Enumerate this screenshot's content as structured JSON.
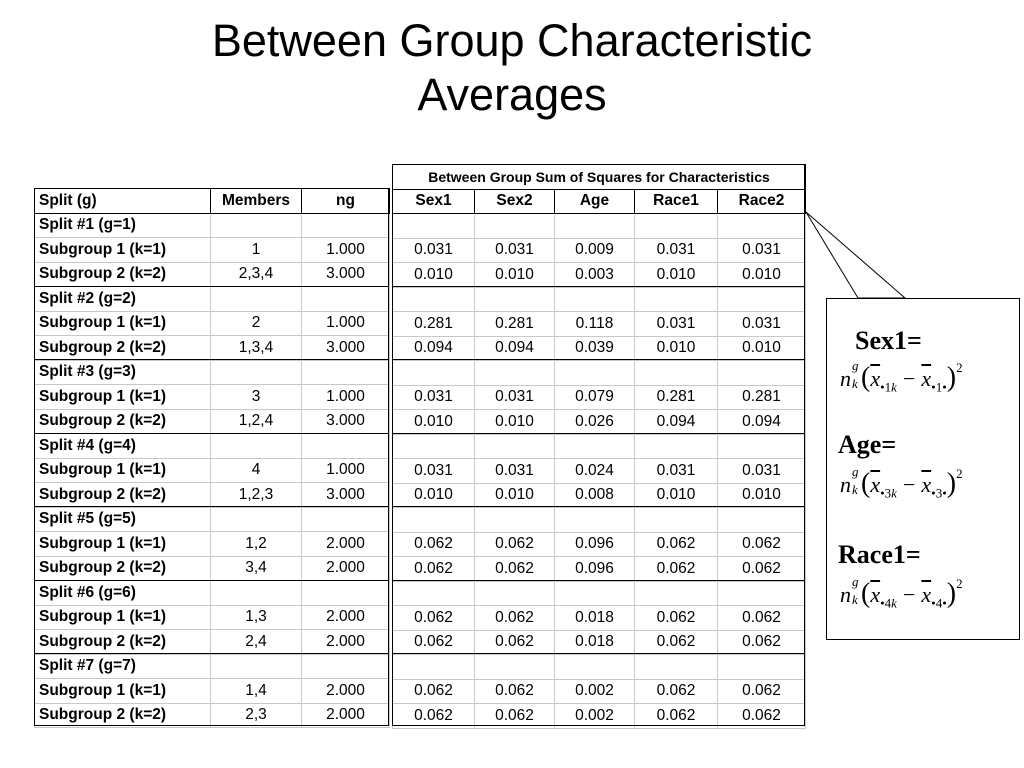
{
  "title_line1": "Between Group Characteristic",
  "title_line2": "Averages",
  "table": {
    "super_header": "Between Group Sum of Squares for Characteristics",
    "headers": [
      "Split (g)",
      "Members",
      "ng",
      "Sex1",
      "Sex2",
      "Age",
      "Race1",
      "Race2"
    ],
    "rows": [
      [
        "Split #1 (g=1)",
        "",
        "",
        "",
        "",
        "",
        "",
        ""
      ],
      [
        "Subgroup 1 (k=1)",
        "1",
        "1.000",
        "0.031",
        "0.031",
        "0.009",
        "0.031",
        "0.031"
      ],
      [
        "Subgroup 2 (k=2)",
        "2,3,4",
        "3.000",
        "0.010",
        "0.010",
        "0.003",
        "0.010",
        "0.010"
      ],
      [
        "Split #2 (g=2)",
        "",
        "",
        "",
        "",
        "",
        "",
        ""
      ],
      [
        "Subgroup 1 (k=1)",
        "2",
        "1.000",
        "0.281",
        "0.281",
        "0.118",
        "0.031",
        "0.031"
      ],
      [
        "Subgroup 2 (k=2)",
        "1,3,4",
        "3.000",
        "0.094",
        "0.094",
        "0.039",
        "0.010",
        "0.010"
      ],
      [
        "Split #3 (g=3)",
        "",
        "",
        "",
        "",
        "",
        "",
        ""
      ],
      [
        "Subgroup 1 (k=1)",
        "3",
        "1.000",
        "0.031",
        "0.031",
        "0.079",
        "0.281",
        "0.281"
      ],
      [
        "Subgroup 2 (k=2)",
        "1,2,4",
        "3.000",
        "0.010",
        "0.010",
        "0.026",
        "0.094",
        "0.094"
      ],
      [
        "Split #4 (g=4)",
        "",
        "",
        "",
        "",
        "",
        "",
        ""
      ],
      [
        "Subgroup 1 (k=1)",
        "4",
        "1.000",
        "0.031",
        "0.031",
        "0.024",
        "0.031",
        "0.031"
      ],
      [
        "Subgroup 2 (k=2)",
        "1,2,3",
        "3.000",
        "0.010",
        "0.010",
        "0.008",
        "0.010",
        "0.010"
      ],
      [
        "Split #5 (g=5)",
        "",
        "",
        "",
        "",
        "",
        "",
        ""
      ],
      [
        "Subgroup 1 (k=1)",
        "1,2",
        "2.000",
        "0.062",
        "0.062",
        "0.096",
        "0.062",
        "0.062"
      ],
      [
        "Subgroup 2 (k=2)",
        "3,4",
        "2.000",
        "0.062",
        "0.062",
        "0.096",
        "0.062",
        "0.062"
      ],
      [
        "Split #6 (g=6)",
        "",
        "",
        "",
        "",
        "",
        "",
        ""
      ],
      [
        "Subgroup 1 (k=1)",
        "1,3",
        "2.000",
        "0.062",
        "0.062",
        "0.018",
        "0.062",
        "0.062"
      ],
      [
        "Subgroup 2 (k=2)",
        "2,4",
        "2.000",
        "0.062",
        "0.062",
        "0.018",
        "0.062",
        "0.062"
      ],
      [
        "Split #7 (g=7)",
        "",
        "",
        "",
        "",
        "",
        "",
        ""
      ],
      [
        "Subgroup 1 (k=1)",
        "1,4",
        "2.000",
        "0.062",
        "0.062",
        "0.002",
        "0.062",
        "0.062"
      ],
      [
        "Subgroup 2 (k=2)",
        "2,3",
        "2.000",
        "0.062",
        "0.062",
        "0.002",
        "0.062",
        "0.062"
      ]
    ]
  },
  "callout": {
    "items": [
      {
        "label": "Sex1=",
        "idx": "1"
      },
      {
        "label": "Age=",
        "idx": "3"
      },
      {
        "label": "Race1=",
        "idx": "4"
      }
    ],
    "n": "n",
    "sub_k": "k",
    "sup_g": "g",
    "xbar": "x",
    "minus": "−",
    "square": "2",
    "dot": "•",
    "paren_open": "(",
    "paren_close": ")"
  }
}
